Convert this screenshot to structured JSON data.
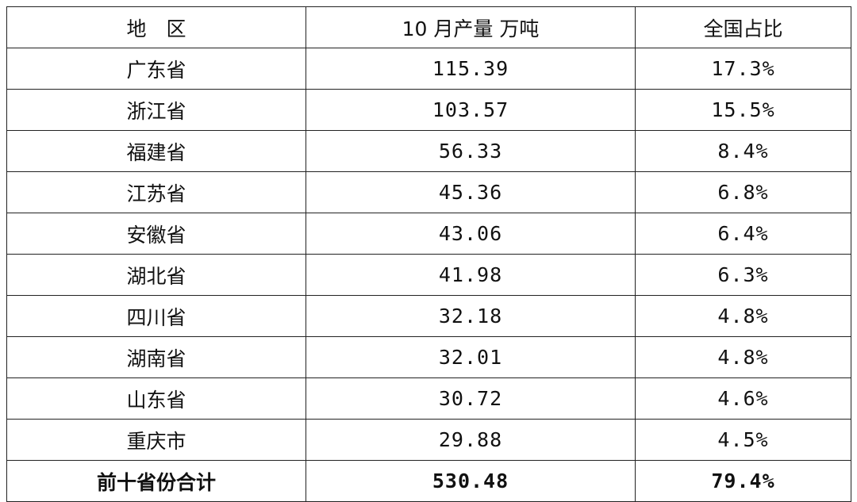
{
  "table": {
    "headers": [
      "地　区",
      "10 月产量 万吨",
      "全国占比"
    ],
    "rows": [
      [
        "广东省",
        "115.39",
        "17.3%"
      ],
      [
        "浙江省",
        "103.57",
        "15.5%"
      ],
      [
        "福建省",
        "56.33",
        "8.4%"
      ],
      [
        "江苏省",
        "45.36",
        "6.8%"
      ],
      [
        "安徽省",
        "43.06",
        "6.4%"
      ],
      [
        "湖北省",
        "41.98",
        "6.3%"
      ],
      [
        "四川省",
        "32.18",
        "4.8%"
      ],
      [
        "湖南省",
        "32.01",
        "4.8%"
      ],
      [
        "山东省",
        "30.72",
        "4.6%"
      ],
      [
        "重庆市",
        "29.88",
        "4.5%"
      ]
    ],
    "total": [
      "前十省份合计",
      "530.48",
      "79.4%"
    ]
  }
}
